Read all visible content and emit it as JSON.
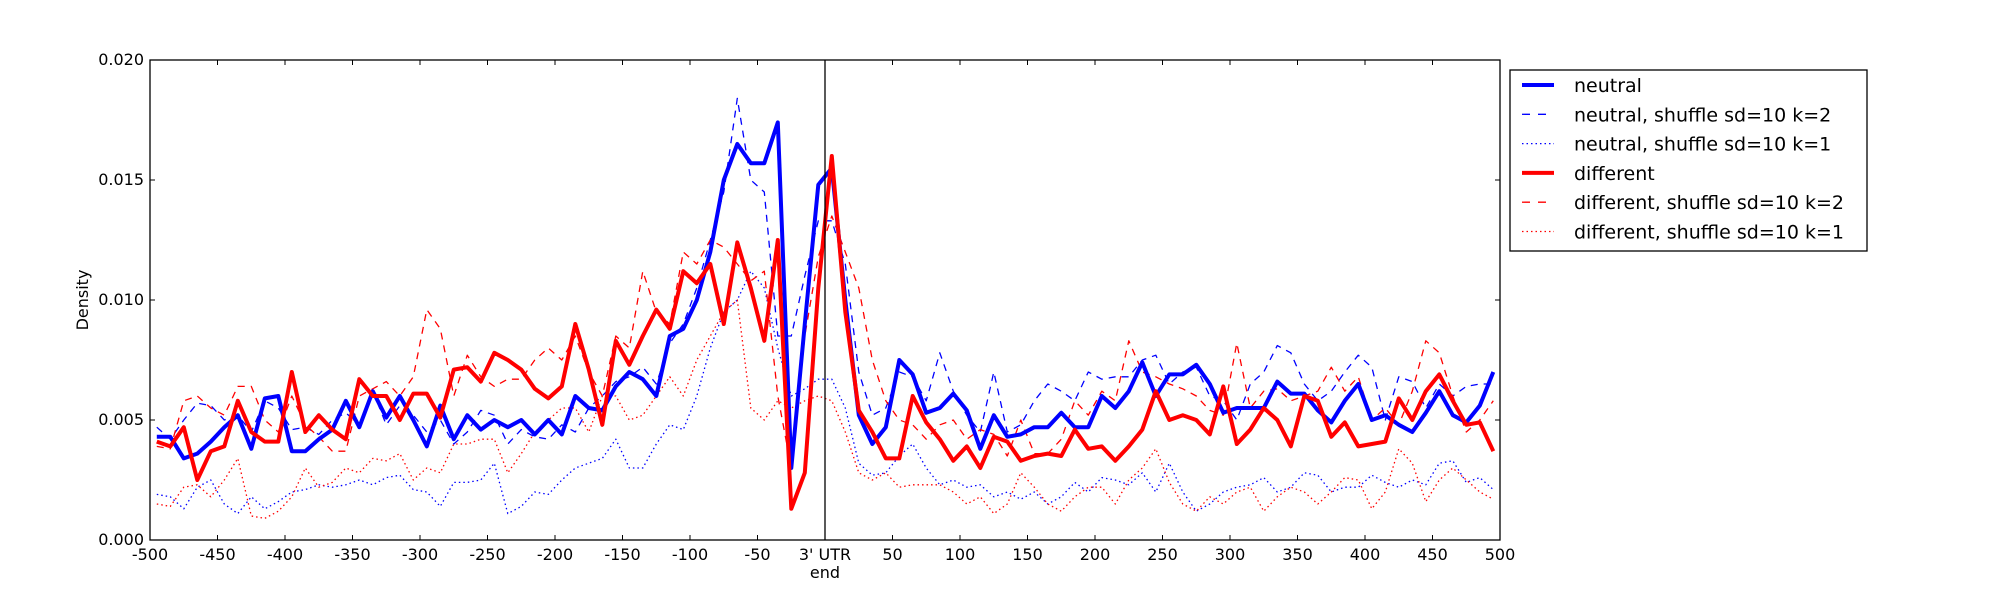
{
  "chart_data": {
    "type": "line",
    "title": "",
    "xlabel": "end",
    "ylabel": "Density",
    "xlim": [
      -500,
      500
    ],
    "ylim": [
      0,
      0.02
    ],
    "grid": false,
    "legend_placement": "outside-top-right",
    "vertical_line_at": 0,
    "x_ticks": [
      {
        "value": -500,
        "label": "-500"
      },
      {
        "value": -450,
        "label": "-450"
      },
      {
        "value": -400,
        "label": "-400"
      },
      {
        "value": -350,
        "label": "-350"
      },
      {
        "value": -300,
        "label": "-300"
      },
      {
        "value": -250,
        "label": "-250"
      },
      {
        "value": -200,
        "label": "-200"
      },
      {
        "value": -150,
        "label": "-150"
      },
      {
        "value": -100,
        "label": "-100"
      },
      {
        "value": -50,
        "label": "-50"
      },
      {
        "value": 0,
        "label": "3' UTR"
      },
      {
        "value": 50,
        "label": "50"
      },
      {
        "value": 100,
        "label": "100"
      },
      {
        "value": 150,
        "label": "150"
      },
      {
        "value": 200,
        "label": "200"
      },
      {
        "value": 250,
        "label": "250"
      },
      {
        "value": 300,
        "label": "300"
      },
      {
        "value": 350,
        "label": "350"
      },
      {
        "value": 400,
        "label": "400"
      },
      {
        "value": 450,
        "label": "450"
      },
      {
        "value": 500,
        "label": "500"
      }
    ],
    "y_ticks": [
      {
        "value": 0,
        "label": "0.000"
      },
      {
        "value": 0.005,
        "label": "0.005"
      },
      {
        "value": 0.01,
        "label": "0.010"
      },
      {
        "value": 0.015,
        "label": "0.015"
      },
      {
        "value": 0.02,
        "label": "0.020"
      }
    ],
    "x": [
      -495,
      -485,
      -475,
      -465,
      -455,
      -445,
      -435,
      -425,
      -415,
      -405,
      -395,
      -385,
      -375,
      -365,
      -355,
      -345,
      -335,
      -325,
      -315,
      -305,
      -295,
      -285,
      -275,
      -265,
      -255,
      -245,
      -235,
      -225,
      -215,
      -205,
      -195,
      -185,
      -175,
      -165,
      -155,
      -145,
      -135,
      -125,
      -115,
      -105,
      -95,
      -85,
      -75,
      -65,
      -55,
      -45,
      -35,
      -25,
      -15,
      -5,
      5,
      15,
      25,
      35,
      45,
      55,
      65,
      75,
      85,
      95,
      105,
      115,
      125,
      135,
      145,
      155,
      165,
      175,
      185,
      195,
      205,
      215,
      225,
      235,
      245,
      255,
      265,
      275,
      285,
      295,
      305,
      315,
      325,
      335,
      345,
      355,
      365,
      375,
      385,
      395,
      405,
      415,
      425,
      435,
      445,
      455,
      465,
      475,
      485,
      495
    ],
    "series": [
      {
        "name": "neutral",
        "color": "#0000ff",
        "style": "solid",
        "values": [
          0.0043,
          0.0043,
          0.0034,
          0.0036,
          0.0041,
          0.0047,
          0.0052,
          0.0038,
          0.0059,
          0.006,
          0.0037,
          0.0037,
          0.0042,
          0.0046,
          0.0058,
          0.0047,
          0.0062,
          0.0051,
          0.006,
          0.005,
          0.0039,
          0.0056,
          0.0042,
          0.0052,
          0.0046,
          0.005,
          0.0047,
          0.005,
          0.0044,
          0.005,
          0.0044,
          0.006,
          0.0055,
          0.0054,
          0.0064,
          0.007,
          0.0067,
          0.006,
          0.0085,
          0.0088,
          0.01,
          0.012,
          0.015,
          0.0165,
          0.0157,
          0.0157,
          0.0174,
          0.003,
          0.009,
          0.0148,
          0.0155,
          0.01,
          0.0052,
          0.004,
          0.0047,
          0.0075,
          0.0069,
          0.0053,
          0.0055,
          0.0061,
          0.0054,
          0.0038,
          0.0052,
          0.0043,
          0.0044,
          0.0047,
          0.0047,
          0.0053,
          0.0047,
          0.0047,
          0.006,
          0.0055,
          0.0062,
          0.0074,
          0.006,
          0.0069,
          0.0069,
          0.0073,
          0.0065,
          0.0053,
          0.0055,
          0.0055,
          0.0055,
          0.0066,
          0.0061,
          0.0061,
          0.0054,
          0.0049,
          0.0058,
          0.0065,
          0.005,
          0.0052,
          0.0048,
          0.0045,
          0.0053,
          0.0062,
          0.0052,
          0.0049,
          0.0056,
          0.007
        ]
      },
      {
        "name": "neutral, shuffle sd=10 k=2",
        "color": "#0000ff",
        "style": "dashed",
        "values": [
          0.0047,
          0.0042,
          0.005,
          0.0057,
          0.0056,
          0.005,
          0.0052,
          0.0045,
          0.0058,
          0.0055,
          0.0046,
          0.0047,
          0.0044,
          0.005,
          0.0053,
          0.0048,
          0.0062,
          0.0048,
          0.0056,
          0.0052,
          0.0045,
          0.005,
          0.004,
          0.0045,
          0.0054,
          0.0052,
          0.004,
          0.0046,
          0.0043,
          0.0042,
          0.0048,
          0.0045,
          0.0055,
          0.006,
          0.0066,
          0.0068,
          0.0072,
          0.0065,
          0.0082,
          0.009,
          0.0105,
          0.0125,
          0.0145,
          0.0184,
          0.015,
          0.0145,
          0.0085,
          0.0085,
          0.011,
          0.0133,
          0.0133,
          0.0115,
          0.007,
          0.0052,
          0.0055,
          0.007,
          0.0068,
          0.0058,
          0.0078,
          0.0062,
          0.0052,
          0.0045,
          0.007,
          0.0045,
          0.0048,
          0.0058,
          0.0065,
          0.0062,
          0.0058,
          0.007,
          0.0067,
          0.0068,
          0.0068,
          0.0075,
          0.0077,
          0.0065,
          0.007,
          0.0072,
          0.006,
          0.0058,
          0.005,
          0.0065,
          0.007,
          0.0081,
          0.0078,
          0.0065,
          0.0058,
          0.0062,
          0.007,
          0.0077,
          0.0072,
          0.005,
          0.0068,
          0.0066,
          0.0055,
          0.0065,
          0.006,
          0.0064,
          0.0065,
          0.0065
        ]
      },
      {
        "name": "neutral, shuffle sd=10 k=1",
        "color": "#0000ff",
        "style": "dotted",
        "values": [
          0.0019,
          0.0018,
          0.0013,
          0.0022,
          0.0025,
          0.0015,
          0.0011,
          0.0018,
          0.0013,
          0.0016,
          0.002,
          0.0021,
          0.0023,
          0.0022,
          0.0023,
          0.0025,
          0.0023,
          0.0026,
          0.0027,
          0.0021,
          0.002,
          0.0014,
          0.0024,
          0.0024,
          0.0025,
          0.0032,
          0.0011,
          0.0014,
          0.002,
          0.0019,
          0.0025,
          0.003,
          0.0032,
          0.0034,
          0.0042,
          0.003,
          0.003,
          0.004,
          0.0048,
          0.0046,
          0.006,
          0.008,
          0.0095,
          0.01,
          0.0112,
          0.0105,
          0.008,
          0.006,
          0.0063,
          0.0067,
          0.0067,
          0.0055,
          0.0032,
          0.0027,
          0.0028,
          0.0035,
          0.004,
          0.003,
          0.0023,
          0.0025,
          0.0022,
          0.0023,
          0.0018,
          0.002,
          0.0017,
          0.002,
          0.0015,
          0.0018,
          0.0024,
          0.002,
          0.0026,
          0.0025,
          0.0023,
          0.0028,
          0.002,
          0.0032,
          0.002,
          0.0012,
          0.0015,
          0.002,
          0.0022,
          0.0023,
          0.0026,
          0.002,
          0.0022,
          0.0028,
          0.0027,
          0.002,
          0.0022,
          0.0022,
          0.0027,
          0.0024,
          0.0022,
          0.0025,
          0.0023,
          0.0032,
          0.0033,
          0.0024,
          0.0026,
          0.0021
        ]
      },
      {
        "name": "different",
        "color": "#ff0000",
        "style": "solid",
        "values": [
          0.0041,
          0.0039,
          0.0047,
          0.0025,
          0.0037,
          0.0039,
          0.0058,
          0.0045,
          0.0041,
          0.0041,
          0.007,
          0.0045,
          0.0052,
          0.0046,
          0.0042,
          0.0067,
          0.006,
          0.006,
          0.005,
          0.0061,
          0.0061,
          0.0051,
          0.0071,
          0.0072,
          0.0066,
          0.0078,
          0.0075,
          0.0071,
          0.0063,
          0.0059,
          0.0064,
          0.009,
          0.0071,
          0.0048,
          0.0083,
          0.0073,
          0.0085,
          0.0096,
          0.0088,
          0.0112,
          0.0107,
          0.0115,
          0.009,
          0.0124,
          0.0105,
          0.0083,
          0.0125,
          0.0013,
          0.0028,
          0.0105,
          0.016,
          0.0095,
          0.0054,
          0.0045,
          0.0034,
          0.0034,
          0.006,
          0.0049,
          0.0042,
          0.0033,
          0.0039,
          0.003,
          0.0043,
          0.0041,
          0.0033,
          0.0035,
          0.0036,
          0.0035,
          0.0046,
          0.0038,
          0.0039,
          0.0033,
          0.0039,
          0.0046,
          0.0062,
          0.005,
          0.0052,
          0.005,
          0.0044,
          0.0064,
          0.004,
          0.0046,
          0.0055,
          0.005,
          0.0039,
          0.006,
          0.0058,
          0.0043,
          0.0049,
          0.0039,
          0.004,
          0.0041,
          0.0059,
          0.005,
          0.0062,
          0.0069,
          0.0058,
          0.0048,
          0.0049,
          0.0037
        ]
      },
      {
        "name": "different, shuffle sd=10 k=2",
        "color": "#ff0000",
        "style": "dashed",
        "values": [
          0.0039,
          0.0038,
          0.0058,
          0.006,
          0.0055,
          0.0052,
          0.0064,
          0.0064,
          0.005,
          0.0045,
          0.006,
          0.0048,
          0.0043,
          0.0037,
          0.0037,
          0.006,
          0.0063,
          0.0066,
          0.006,
          0.0068,
          0.0096,
          0.0088,
          0.006,
          0.0077,
          0.0068,
          0.0064,
          0.0067,
          0.0067,
          0.0075,
          0.008,
          0.0075,
          0.0085,
          0.007,
          0.006,
          0.0085,
          0.008,
          0.0112,
          0.0095,
          0.009,
          0.012,
          0.0115,
          0.0125,
          0.0122,
          0.0115,
          0.0108,
          0.0112,
          0.006,
          0.003,
          0.0085,
          0.0118,
          0.0135,
          0.012,
          0.0105,
          0.0075,
          0.0058,
          0.005,
          0.0048,
          0.0042,
          0.0048,
          0.005,
          0.0042,
          0.0046,
          0.0044,
          0.0035,
          0.005,
          0.0036,
          0.0036,
          0.0042,
          0.0058,
          0.0052,
          0.0062,
          0.0058,
          0.0083,
          0.007,
          0.0068,
          0.0065,
          0.0063,
          0.006,
          0.0054,
          0.0052,
          0.0082,
          0.0055,
          0.0062,
          0.0063,
          0.0058,
          0.006,
          0.0062,
          0.0072,
          0.0062,
          0.0068,
          0.005,
          0.0055,
          0.0048,
          0.0062,
          0.0083,
          0.0078,
          0.006,
          0.0045,
          0.005,
          0.0058
        ]
      },
      {
        "name": "different, shuffle sd=10 k=1",
        "color": "#ff0000",
        "style": "dotted",
        "values": [
          0.0015,
          0.0014,
          0.0022,
          0.0023,
          0.0018,
          0.0025,
          0.0034,
          0.001,
          0.0009,
          0.0012,
          0.0018,
          0.003,
          0.0022,
          0.0024,
          0.003,
          0.0028,
          0.0034,
          0.0033,
          0.0036,
          0.0025,
          0.003,
          0.0028,
          0.004,
          0.004,
          0.0042,
          0.0042,
          0.0028,
          0.0036,
          0.0045,
          0.005,
          0.0055,
          0.0055,
          0.0045,
          0.006,
          0.006,
          0.005,
          0.0052,
          0.006,
          0.0068,
          0.006,
          0.0075,
          0.0085,
          0.0095,
          0.01,
          0.0055,
          0.005,
          0.0058,
          0.0055,
          0.0058,
          0.006,
          0.0058,
          0.0045,
          0.0028,
          0.0025,
          0.0028,
          0.0022,
          0.0023,
          0.0023,
          0.0023,
          0.002,
          0.0015,
          0.0018,
          0.0011,
          0.0015,
          0.0028,
          0.0022,
          0.0015,
          0.0012,
          0.0018,
          0.0022,
          0.0022,
          0.0015,
          0.0025,
          0.003,
          0.0038,
          0.0024,
          0.0015,
          0.0012,
          0.0018,
          0.0015,
          0.002,
          0.0022,
          0.0012,
          0.0018,
          0.0022,
          0.002,
          0.0015,
          0.002,
          0.0026,
          0.0025,
          0.0013,
          0.002,
          0.0038,
          0.0032,
          0.0016,
          0.0025,
          0.003,
          0.0025,
          0.002,
          0.0017
        ]
      }
    ]
  }
}
